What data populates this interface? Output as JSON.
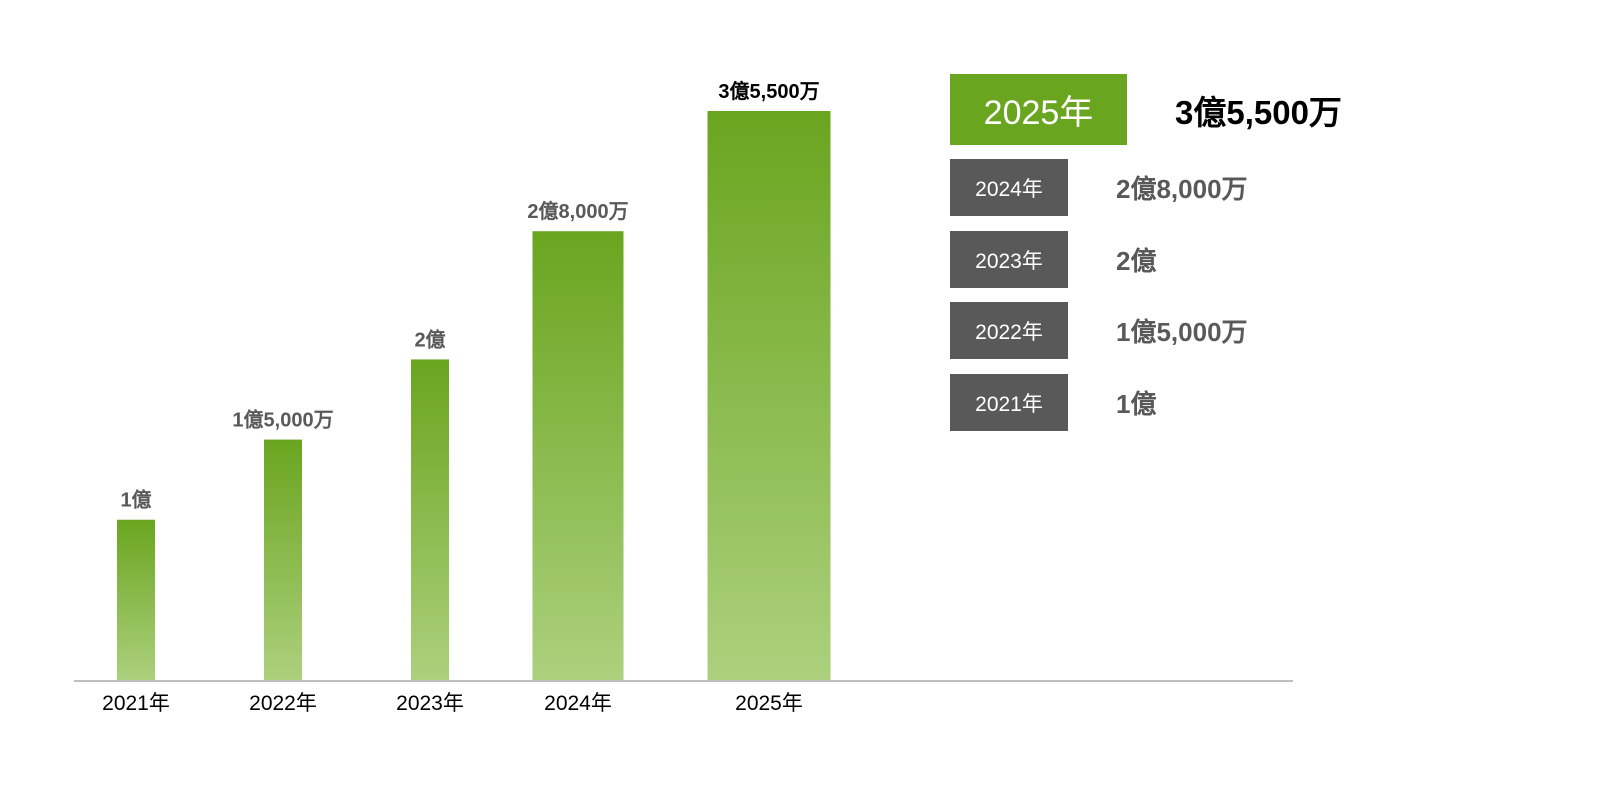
{
  "chart_data": {
    "type": "bar",
    "categories": [
      "2021年",
      "2022年",
      "2023年",
      "2024年",
      "2025年"
    ],
    "values": [
      10000,
      15000,
      20000,
      28000,
      35500
    ],
    "value_unit": "万",
    "data_labels": [
      "1億",
      "1億5,000万",
      "2億",
      "2億8,000万",
      "3億5,500万"
    ],
    "highlight_category": "2025年",
    "title": "",
    "xlabel": "",
    "ylabel": "",
    "ylim": [
      0,
      35500
    ],
    "grid": false,
    "colors": {
      "bar_top": "#6aa51f",
      "bar_bottom": "#acd07d",
      "axis": "#7f7f7f",
      "label": "#595959",
      "highlight_label": "#000000"
    }
  },
  "legend": {
    "items": [
      {
        "year": "2025年",
        "value": "3億5,500万",
        "highlight": true
      },
      {
        "year": "2024年",
        "value": "2億8,000万",
        "highlight": false
      },
      {
        "year": "2023年",
        "value": "2億",
        "highlight": false
      },
      {
        "year": "2022年",
        "value": "1億5,000万",
        "highlight": false
      },
      {
        "year": "2021年",
        "value": "1億",
        "highlight": false
      }
    ],
    "colors": {
      "highlight_box": "#6aa51f",
      "normal_box": "#595959"
    }
  }
}
